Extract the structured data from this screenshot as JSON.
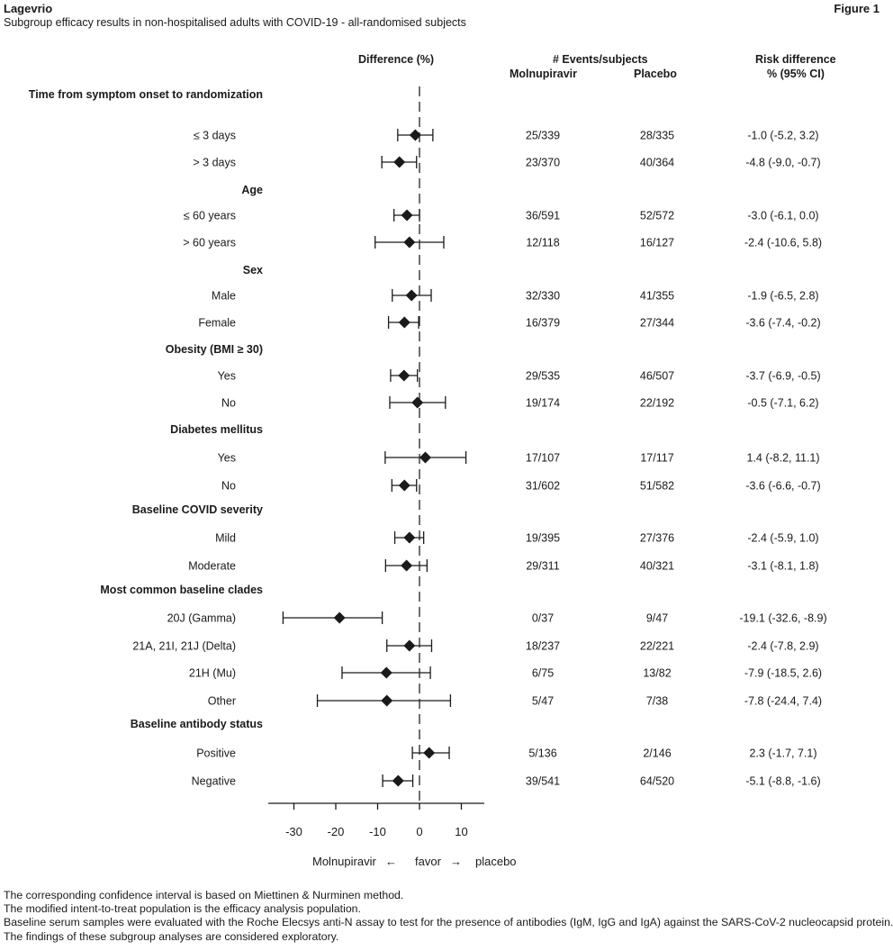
{
  "header": {
    "brand": "Lagevrio",
    "figure_label": "Figure 1",
    "subtitle": "Subgroup efficacy results in non-hospitalised adults with COVID-19 - all-randomised subjects"
  },
  "columns": {
    "difference": "Difference (%)",
    "events": "# Events/subjects",
    "molnupiravir": "Molnupiravir",
    "placebo": "Placebo",
    "risk_line1": "Risk difference",
    "risk_line2": "% (95% CI)"
  },
  "axis_caption": {
    "left": "Molnupiravir",
    "left_arrow": "←",
    "middle": "favor",
    "right_arrow": "→",
    "right": "placebo"
  },
  "footnotes": [
    "The corresponding confidence interval is based on Miettinen & Nurminen method.",
    "The modified intent-to-treat population is the efficacy analysis population.",
    "Baseline serum samples were evaluated with the Roche Elecsys anti-N assay to test for the presence of antibodies (IgM, IgG and IgA) against the SARS-CoV-2 nucleocapsid protein.",
    "The findings of these subgroup analyses are considered exploratory."
  ],
  "chart_data": {
    "type": "forest",
    "xlabel": "",
    "xlim": [
      -37,
      15
    ],
    "xticks": [
      -30,
      -20,
      -10,
      0,
      10
    ],
    "reference_line": 0,
    "groups": [
      {
        "title": "Time from symptom onset to randomization",
        "rows": [
          {
            "label": "≤ 3 days",
            "mol": "25/339",
            "pla": "28/335",
            "est": -1.0,
            "lo": -5.2,
            "hi": 3.2,
            "ci_text": "-1.0 (-5.2, 3.2)"
          },
          {
            "label": "> 3 days",
            "mol": "23/370",
            "pla": "40/364",
            "est": -4.8,
            "lo": -9.0,
            "hi": -0.7,
            "ci_text": "-4.8 (-9.0, -0.7)"
          }
        ]
      },
      {
        "title": "Age",
        "rows": [
          {
            "label": "≤ 60 years",
            "mol": "36/591",
            "pla": "52/572",
            "est": -3.0,
            "lo": -6.1,
            "hi": 0.0,
            "ci_text": "-3.0 (-6.1, 0.0)"
          },
          {
            "label": "> 60 years",
            "mol": "12/118",
            "pla": "16/127",
            "est": -2.4,
            "lo": -10.6,
            "hi": 5.8,
            "ci_text": "-2.4 (-10.6, 5.8)"
          }
        ]
      },
      {
        "title": "Sex",
        "rows": [
          {
            "label": "Male",
            "mol": "32/330",
            "pla": "41/355",
            "est": -1.9,
            "lo": -6.5,
            "hi": 2.8,
            "ci_text": "-1.9 (-6.5, 2.8)"
          },
          {
            "label": "Female",
            "mol": "16/379",
            "pla": "27/344",
            "est": -3.6,
            "lo": -7.4,
            "hi": -0.2,
            "ci_text": "-3.6 (-7.4, -0.2)"
          }
        ]
      },
      {
        "title": "Obesity (BMI ≥ 30)",
        "rows": [
          {
            "label": "Yes",
            "mol": "29/535",
            "pla": "46/507",
            "est": -3.7,
            "lo": -6.9,
            "hi": -0.5,
            "ci_text": "-3.7 (-6.9, -0.5)"
          },
          {
            "label": "No",
            "mol": "19/174",
            "pla": "22/192",
            "est": -0.5,
            "lo": -7.1,
            "hi": 6.2,
            "ci_text": "-0.5 (-7.1, 6.2)"
          }
        ]
      },
      {
        "title": "Diabetes mellitus",
        "rows": [
          {
            "label": "Yes",
            "mol": "17/107",
            "pla": "17/117",
            "est": 1.4,
            "lo": -8.2,
            "hi": 11.1,
            "ci_text": "1.4 (-8.2, 11.1)"
          },
          {
            "label": "No",
            "mol": "31/602",
            "pla": "51/582",
            "est": -3.6,
            "lo": -6.6,
            "hi": -0.7,
            "ci_text": "-3.6 (-6.6, -0.7)"
          }
        ]
      },
      {
        "title": "Baseline COVID severity",
        "rows": [
          {
            "label": "Mild",
            "mol": "19/395",
            "pla": "27/376",
            "est": -2.4,
            "lo": -5.9,
            "hi": 1.0,
            "ci_text": "-2.4 (-5.9, 1.0)"
          },
          {
            "label": "Moderate",
            "mol": "29/311",
            "pla": "40/321",
            "est": -3.1,
            "lo": -8.1,
            "hi": 1.8,
            "ci_text": "-3.1 (-8.1, 1.8)"
          }
        ]
      },
      {
        "title": "Most common baseline clades",
        "rows": [
          {
            "label": "20J (Gamma)",
            "mol": "0/37",
            "pla": "9/47",
            "est": -19.1,
            "lo": -32.6,
            "hi": -8.9,
            "ci_text": "-19.1 (-32.6, -8.9)"
          },
          {
            "label": "21A, 21I, 21J (Delta)",
            "mol": "18/237",
            "pla": "22/221",
            "est": -2.4,
            "lo": -7.8,
            "hi": 2.9,
            "ci_text": "-2.4 (-7.8, 2.9)"
          },
          {
            "label": "21H (Mu)",
            "mol": "6/75",
            "pla": "13/82",
            "est": -7.9,
            "lo": -18.5,
            "hi": 2.6,
            "ci_text": "-7.9 (-18.5, 2.6)"
          },
          {
            "label": "Other",
            "mol": "5/47",
            "pla": "7/38",
            "est": -7.8,
            "lo": -24.4,
            "hi": 7.4,
            "ci_text": "-7.8 (-24.4, 7.4)"
          }
        ]
      },
      {
        "title": "Baseline antibody status",
        "rows": [
          {
            "label": "Positive",
            "mol": "5/136",
            "pla": "2/146",
            "est": 2.3,
            "lo": -1.7,
            "hi": 7.1,
            "ci_text": "2.3 (-1.7, 7.1)"
          },
          {
            "label": "Negative",
            "mol": "39/541",
            "pla": "64/520",
            "est": -5.1,
            "lo": -8.8,
            "hi": -1.6,
            "ci_text": "-5.1 (-8.8, -1.6)"
          }
        ]
      }
    ]
  }
}
